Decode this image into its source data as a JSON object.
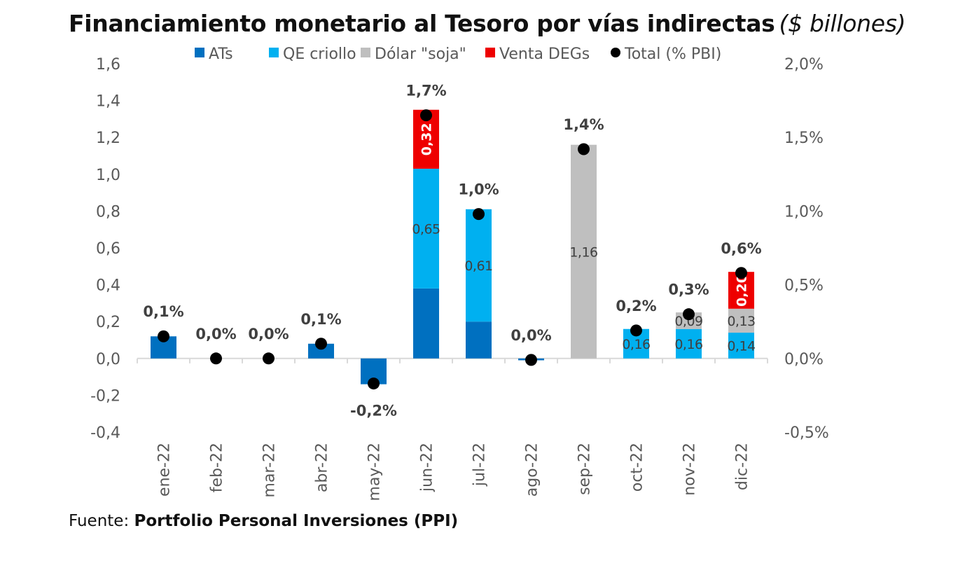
{
  "title": "Financiamiento monetario al Tesoro por vías indirectas",
  "title_unit": "($ billones)",
  "source_label": "Fuente:",
  "source_name": "Portfolio Personal Inversiones (PPI)",
  "chart_data": {
    "type": "bar",
    "stacked": true,
    "title": "Financiamiento monetario al Tesoro por vías indirectas ($ billones)",
    "categories": [
      "ene-22",
      "feb-22",
      "mar-22",
      "abr-22",
      "may-22",
      "jun-22",
      "jul-22",
      "ago-22",
      "sep-22",
      "oct-22",
      "nov-22",
      "dic-22"
    ],
    "series": [
      {
        "name": "ATs",
        "color": "#0070C0",
        "values": [
          0.12,
          0,
          0,
          0.08,
          -0.14,
          0.38,
          0.2,
          -0.01,
          0,
          0,
          0,
          0
        ],
        "labels": [
          "",
          "",
          "",
          "",
          "",
          "",
          "",
          "",
          "",
          "",
          "",
          ""
        ]
      },
      {
        "name": "QE criollo",
        "color": "#00B0F0",
        "values": [
          0,
          0,
          0,
          0,
          0,
          0.65,
          0.61,
          0,
          0,
          0.16,
          0.16,
          0.14
        ],
        "labels": [
          "",
          "",
          "",
          "",
          "",
          "0,65",
          "0,61",
          "",
          "",
          "0,16",
          "0,16",
          "0,14"
        ]
      },
      {
        "name": "Dólar \"soja\"",
        "color": "#BFBFBF",
        "values": [
          0,
          0,
          0,
          0,
          0,
          0,
          0,
          0,
          1.16,
          0,
          0.09,
          0.13
        ],
        "labels": [
          "",
          "",
          "",
          "",
          "",
          "",
          "",
          "",
          "1,16",
          "",
          "0,09",
          "0,13"
        ]
      },
      {
        "name": "Venta DEGs",
        "color": "#EE0000",
        "values": [
          0,
          0,
          0,
          0,
          0,
          0.32,
          0,
          0,
          0,
          0,
          0,
          0.2
        ],
        "labels": [
          "",
          "",
          "",
          "",
          "",
          "0,32",
          "",
          "",
          "",
          "",
          "",
          "0,20"
        ]
      }
    ],
    "line_series": {
      "name": "Total (% PBI)",
      "color": "#000000",
      "axis": "right",
      "values": [
        0.15,
        0.0,
        0.0,
        0.1,
        -0.17,
        1.65,
        0.98,
        -0.01,
        1.42,
        0.19,
        0.3,
        0.58
      ],
      "labels": [
        "0,1%",
        "0,0%",
        "0,0%",
        "0,1%",
        "-0,2%",
        "1,7%",
        "1,0%",
        "0,0%",
        "1,4%",
        "0,2%",
        "0,3%",
        "0,6%"
      ]
    },
    "legend": [
      "ATs",
      "QE criollo",
      "Dólar \"soja\"",
      "Venta DEGs",
      "Total (% PBI)"
    ],
    "legend_position": "top",
    "y_left": {
      "ylim": [
        -0.4,
        1.6
      ],
      "ticks": [
        -0.4,
        -0.2,
        0.0,
        0.2,
        0.4,
        0.6,
        0.8,
        1.0,
        1.2,
        1.4,
        1.6
      ],
      "tick_labels": [
        "-0,4",
        "-0,2",
        "0,0",
        "0,2",
        "0,4",
        "0,6",
        "0,8",
        "1,0",
        "1,2",
        "1,4",
        "1,6"
      ]
    },
    "y_right": {
      "ylim": [
        -0.5,
        2.0
      ],
      "ticks": [
        -0.5,
        0.0,
        0.5,
        1.0,
        1.5,
        2.0
      ],
      "tick_labels": [
        "-0,5%",
        "0,0%",
        "0,5%",
        "1,0%",
        "1,5%",
        "2,0%"
      ]
    },
    "xlabel": "",
    "ylabel": "",
    "grid": false
  }
}
